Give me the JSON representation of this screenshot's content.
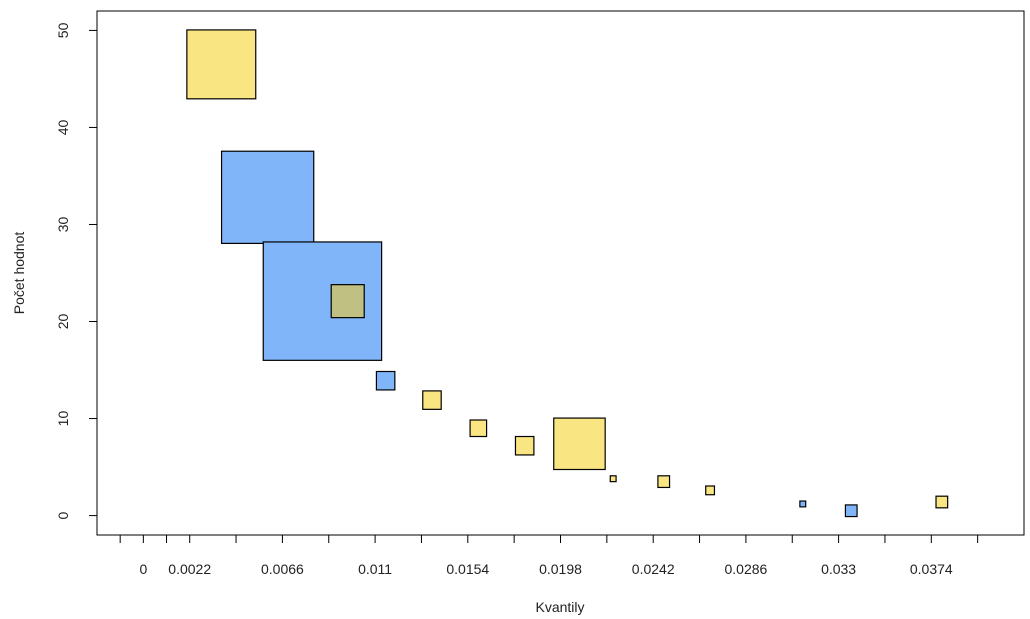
{
  "chart_data": {
    "type": "scatter",
    "title": "",
    "xlabel": "Kvantily",
    "ylabel": "Počet hodnot",
    "xlim": [
      -0.0022,
      0.0418
    ],
    "ylim": [
      -2,
      52
    ],
    "x_ticks": [
      -0.0011,
      0,
      0.0011,
      0.0022,
      0.0044,
      0.0066,
      0.0088,
      0.011,
      0.0132,
      0.0154,
      0.0176,
      0.0198,
      0.022,
      0.0242,
      0.0264,
      0.0286,
      0.0308,
      0.033,
      0.0352,
      0.0374,
      0.0396
    ],
    "x_tick_labels": [
      {
        "value": 0,
        "label": "0"
      },
      {
        "value": 0.0022,
        "label": "0.0022"
      },
      {
        "value": 0.0066,
        "label": "0.0066"
      },
      {
        "value": 0.011,
        "label": "0.011"
      },
      {
        "value": 0.0154,
        "label": "0.0154"
      },
      {
        "value": 0.0198,
        "label": "0.0198"
      },
      {
        "value": 0.0242,
        "label": "0.0242"
      },
      {
        "value": 0.0286,
        "label": "0.0286"
      },
      {
        "value": 0.033,
        "label": "0.033"
      },
      {
        "value": 0.0374,
        "label": "0.0374"
      }
    ],
    "y_ticks": [
      {
        "value": 0,
        "label": "0"
      },
      {
        "value": 10,
        "label": "10"
      },
      {
        "value": 20,
        "label": "20"
      },
      {
        "value": 30,
        "label": "30"
      },
      {
        "value": 40,
        "label": "40"
      },
      {
        "value": 50,
        "label": "50"
      }
    ],
    "grid": false,
    "legend": "none",
    "colors": {
      "yellow": "#FAE583",
      "blue": "#80B6F9",
      "overlap": "#BFC081"
    },
    "series": [
      {
        "points": [
          {
            "x": 0.0037,
            "y": 46.5,
            "size": 7.1,
            "color": "yellow"
          },
          {
            "x": 0.0059,
            "y": 32.8,
            "size": 9.5,
            "color": "blue"
          },
          {
            "x": 0.0085,
            "y": 22.1,
            "size": 12.2,
            "color": "blue"
          },
          {
            "x": 0.0097,
            "y": 22.1,
            "size": 3.4,
            "color": "overlap"
          },
          {
            "x": 0.0115,
            "y": 13.9,
            "size": 1.9,
            "color": "blue"
          },
          {
            "x": 0.0137,
            "y": 11.9,
            "size": 1.9,
            "color": "yellow"
          },
          {
            "x": 0.0159,
            "y": 9.0,
            "size": 1.7,
            "color": "yellow"
          },
          {
            "x": 0.0181,
            "y": 7.2,
            "size": 1.9,
            "color": "yellow"
          },
          {
            "x": 0.0207,
            "y": 7.4,
            "size": 5.3,
            "color": "yellow"
          },
          {
            "x": 0.0223,
            "y": 3.8,
            "size": 0.6,
            "color": "yellow"
          },
          {
            "x": 0.0247,
            "y": 3.5,
            "size": 1.2,
            "color": "yellow"
          },
          {
            "x": 0.0269,
            "y": 2.6,
            "size": 0.9,
            "color": "yellow"
          },
          {
            "x": 0.0313,
            "y": 1.2,
            "size": 0.6,
            "color": "blue"
          },
          {
            "x": 0.0336,
            "y": 0.5,
            "size": 1.2,
            "color": "blue"
          },
          {
            "x": 0.0379,
            "y": 1.4,
            "size": 1.2,
            "color": "yellow"
          }
        ]
      }
    ]
  }
}
